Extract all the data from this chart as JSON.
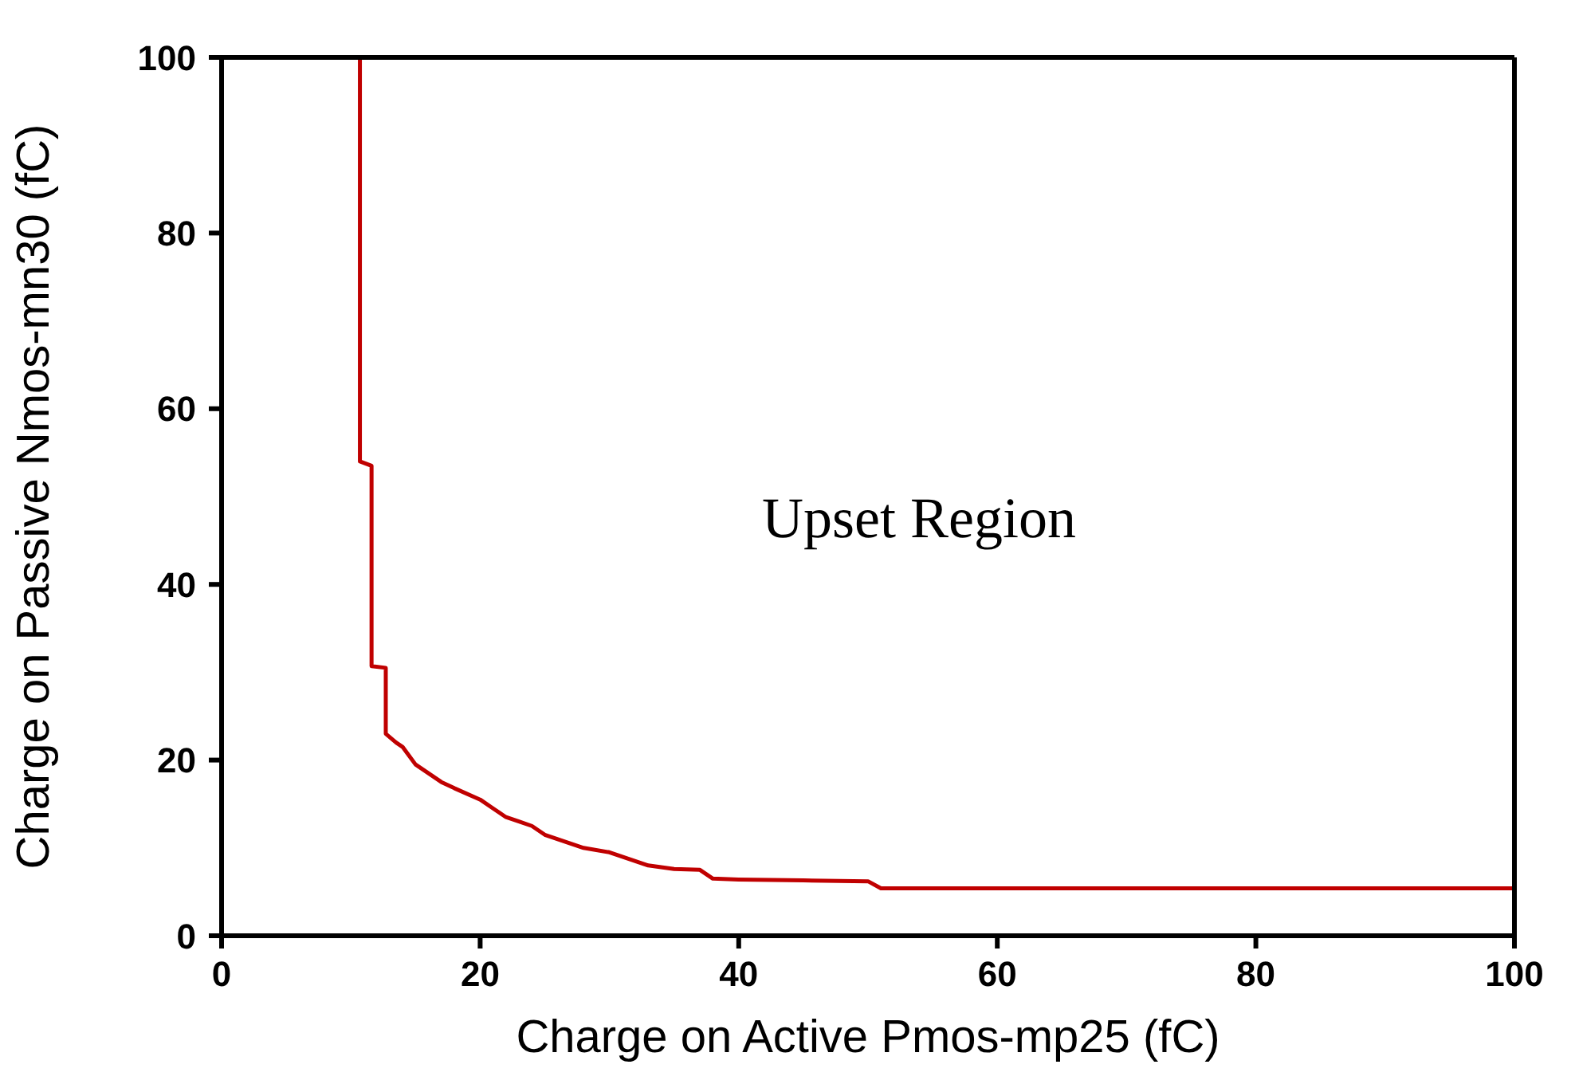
{
  "chart_data": {
    "type": "line",
    "xlabel": "Charge on Active Pmos-mp25 (fC)",
    "ylabel": "Charge on Passive Nmos-mn30 (fC)",
    "annotations": [
      "Upset Region"
    ],
    "series": [
      {
        "color": "#c00000",
        "x": [
          10.7,
          10.7,
          11.6,
          11.6,
          12.7,
          12.7,
          13.5,
          14,
          15,
          16,
          17,
          18,
          20,
          21,
          22,
          23,
          24,
          25,
          26,
          27,
          28,
          30,
          31,
          32,
          33,
          35,
          37,
          38,
          40,
          45,
          50,
          51,
          60,
          70,
          80,
          90,
          100
        ],
        "values": [
          100,
          54,
          53.5,
          30.7,
          30.5,
          23,
          22,
          21.5,
          19.5,
          18.5,
          17.5,
          16.8,
          15.5,
          14.5,
          13.5,
          13,
          12.5,
          11.5,
          11,
          10.5,
          10,
          9.5,
          9,
          8.5,
          8,
          7.6,
          7.5,
          6.5,
          6.4,
          6.3,
          6.2,
          5.4,
          5.4,
          5.4,
          5.4,
          5.4,
          5.4
        ]
      }
    ],
    "xlim": [
      0,
      100
    ],
    "xticks": [
      0,
      20,
      40,
      60,
      80,
      100
    ],
    "ylim": [
      0,
      100
    ],
    "yticks": [
      0,
      20,
      40,
      60,
      80,
      100
    ],
    "marker": "none",
    "line_style": "solid"
  }
}
